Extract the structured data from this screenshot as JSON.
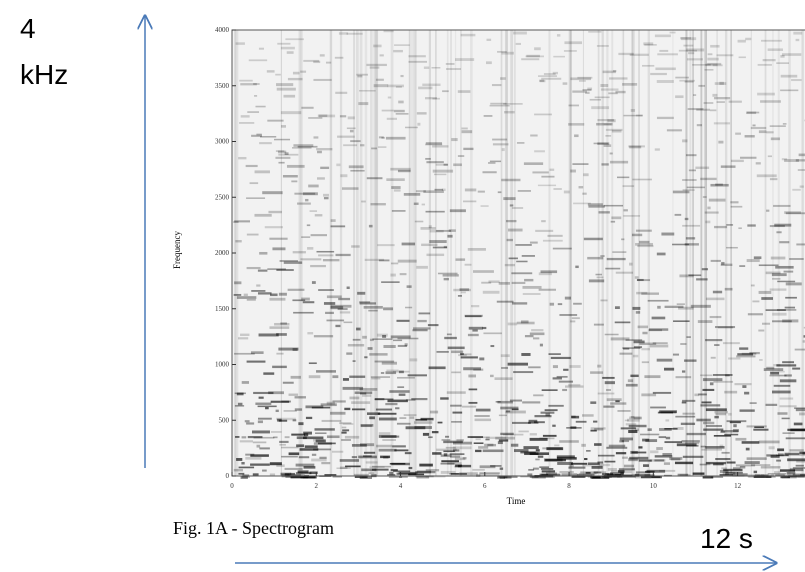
{
  "chart_data": {
    "type": "spectrogram",
    "caption": "Fig. 1A - Spectrogram",
    "xlabel": "Time",
    "ylabel": "Frequency",
    "xlim": [
      0,
      13.6
    ],
    "xticks": [
      0,
      2,
      4,
      6,
      8,
      10,
      12
    ],
    "ylim": [
      0,
      4000
    ],
    "yticks": [
      0,
      500,
      1000,
      1500,
      2000,
      2500,
      3000,
      3500,
      4000
    ]
  },
  "annotations": [
    "4",
    "kHz",
    "12 s"
  ]
}
